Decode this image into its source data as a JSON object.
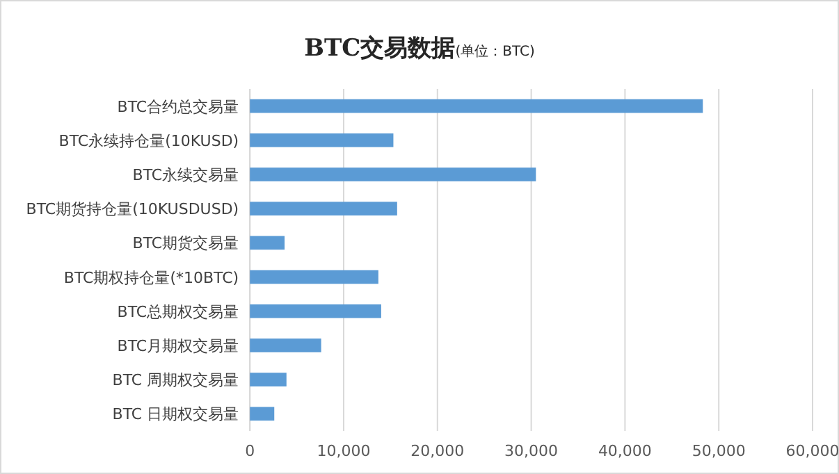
{
  "chart_data": {
    "type": "bar",
    "orientation": "horizontal",
    "title": "BTC交易数据",
    "subtitle": "(单位：BTC)",
    "categories": [
      "BTC合约总交易量",
      "BTC永续持仓量(10KUSD)",
      "BTC永续交易量",
      "BTC期货持仓量(10KUSDUSD)",
      "BTC期货交易量",
      "BTC期权持仓量(*10BTC)",
      "BTC总期权交易量",
      "BTC月期权交易量",
      "BTC 周期权交易量",
      "BTC 日期权交易量"
    ],
    "values": [
      48300,
      15300,
      30500,
      15700,
      3700,
      13700,
      14000,
      7600,
      3900,
      2600
    ],
    "color": "#5b9bd5",
    "xlim": [
      0,
      60000
    ],
    "xticks": [
      {
        "value": 0,
        "label": "0"
      },
      {
        "value": 10000,
        "label": "10,000"
      },
      {
        "value": 20000,
        "label": "20,000"
      },
      {
        "value": 30000,
        "label": "30,000"
      },
      {
        "value": 40000,
        "label": "40,000"
      },
      {
        "value": 50000,
        "label": "50,000"
      },
      {
        "value": 60000,
        "label": "60,000"
      }
    ],
    "grid": "x"
  }
}
